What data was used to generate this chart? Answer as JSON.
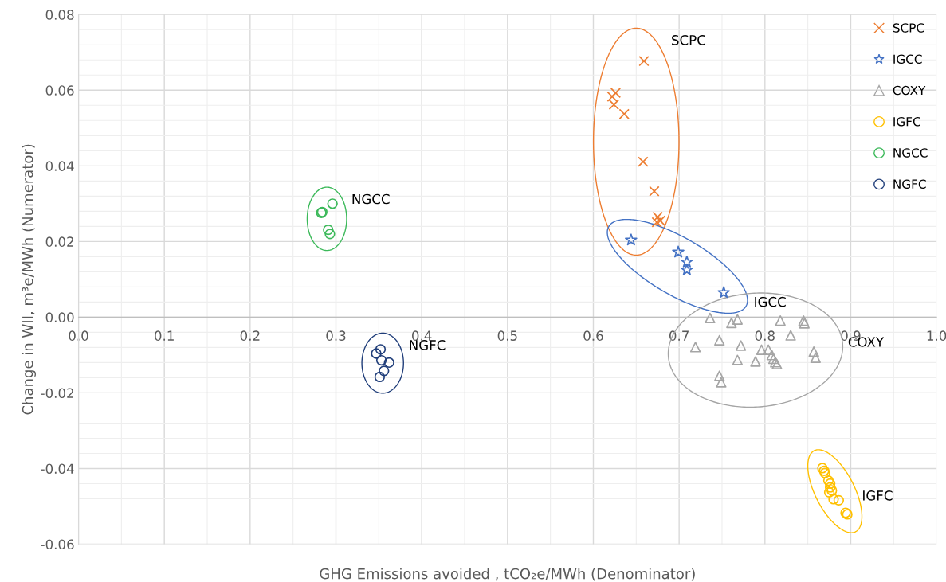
{
  "chart_data": {
    "type": "scatter",
    "xlabel": "GHG Emissions avoided , tCO₂e/MWh (Denominator)",
    "ylabel": "Change in WII, m³e/MWh (Numerator)",
    "xlim": [
      0.0,
      1.0
    ],
    "ylim": [
      -0.06,
      0.08
    ],
    "xticks": [
      {
        "value": 0,
        "label": "0.0"
      },
      0.1,
      0.2,
      0.3,
      0.4,
      0.5,
      0.6,
      0.7,
      0.8,
      0.9,
      {
        "value": 1,
        "label": "1.0"
      }
    ],
    "yticks": [
      -0.06,
      -0.04,
      -0.02,
      {
        "value": 0,
        "label": "0.00"
      },
      0.02,
      0.04,
      0.06,
      0.08
    ],
    "grid": true,
    "legend": "top right",
    "series": [
      {
        "name": "SCPC",
        "color": "#ed7d31",
        "marker": "cross",
        "x": [
          0.659,
          0.626,
          0.622,
          0.624,
          0.636,
          0.658,
          0.671,
          0.675,
          0.678,
          0.674
        ],
        "values": [
          0.0677,
          0.0593,
          0.0583,
          0.0562,
          0.0537,
          0.0411,
          0.0333,
          0.0265,
          0.0255,
          0.0251
        ]
      },
      {
        "name": "IGCC",
        "color": "#4472c4",
        "marker": "star",
        "x": [
          0.644,
          0.699,
          0.709,
          0.709,
          0.752
        ],
        "values": [
          0.0204,
          0.0172,
          0.0146,
          0.0125,
          0.0065
        ]
      },
      {
        "name": "COXY",
        "color": "#a5a5a5",
        "marker": "triangle",
        "x": [
          0.736,
          0.761,
          0.768,
          0.818,
          0.845,
          0.846,
          0.83,
          0.747,
          0.719,
          0.772,
          0.796,
          0.804,
          0.808,
          0.81,
          0.812,
          0.814,
          0.768,
          0.789,
          0.857,
          0.859,
          0.747,
          0.749
        ],
        "values": [
          -0.0002,
          -0.0015,
          -0.0006,
          -0.0009,
          -0.0009,
          -0.0016,
          -0.0048,
          -0.0061,
          -0.0079,
          -0.0075,
          -0.0086,
          -0.0086,
          -0.01,
          -0.011,
          -0.0119,
          -0.0124,
          -0.0113,
          -0.0117,
          -0.0091,
          -0.0107,
          -0.0155,
          -0.0172
        ]
      },
      {
        "name": "IGFC",
        "color": "#ffc000",
        "marker": "circle",
        "x": [
          0.867,
          0.869,
          0.87,
          0.874,
          0.876,
          0.876,
          0.878,
          0.875,
          0.88,
          0.886,
          0.894,
          0.896
        ],
        "values": [
          -0.0399,
          -0.0406,
          -0.0412,
          -0.0432,
          -0.044,
          -0.045,
          -0.0458,
          -0.0463,
          -0.0481,
          -0.0484,
          -0.0517,
          -0.0521
        ]
      },
      {
        "name": "NGCC",
        "color": "#3cb95a",
        "marker": "circle",
        "x": [
          0.296,
          0.283,
          0.284,
          0.291,
          0.293
        ],
        "values": [
          0.03,
          0.0276,
          0.0278,
          0.0231,
          0.022
        ]
      },
      {
        "name": "NGFC",
        "color": "#203e7a",
        "marker": "circle",
        "x": [
          0.352,
          0.347,
          0.353,
          0.362,
          0.356,
          0.351
        ],
        "values": [
          -0.0085,
          -0.0096,
          -0.0114,
          -0.012,
          -0.0142,
          -0.0158
        ]
      }
    ],
    "annotations": [
      "SCPC",
      "IGCC",
      "COXY",
      "IGFC",
      "NGCC",
      "NGFC"
    ]
  }
}
